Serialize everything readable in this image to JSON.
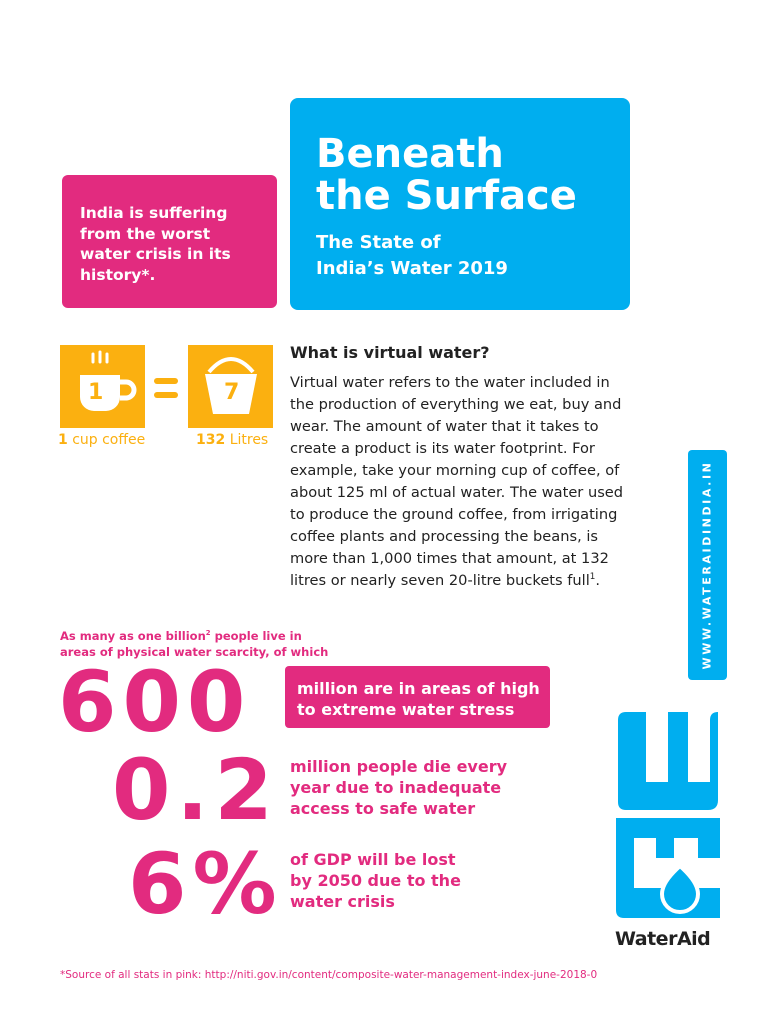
{
  "intro_box": {
    "text": "India is suffering from the worst water crisis in its history*."
  },
  "header": {
    "title_line1": "Beneath",
    "title_line2": "the Surface",
    "subtitle_line1": "The State of",
    "subtitle_line2": "India’s Water 2019"
  },
  "coffee": {
    "cup_digit": "1",
    "bucket_digit": "7",
    "cup_amount": "1",
    "cup_label": "cup coffee",
    "bucket_amount": "132",
    "bucket_label": "Litres"
  },
  "virtual_water": {
    "heading": "What is virtual water?",
    "body": "Virtual water refers to the water included in the production of everything we eat, buy and wear. The amount of water that it takes to create a product is its water footprint. For example, take your morning cup of coffee, of about 125 ml of actual water. The water used to produce the ground coffee, from irrigating coffee plants and processing the beans, is more than 1,000 times that amount, at 132 litres or nearly seven 20-litre buckets full",
    "footnote_mark": "1",
    "body_end": "."
  },
  "website": "WWW.WATERAIDINDIA.IN",
  "stats_intro": {
    "before": "As many as one billion",
    "footnote_mark": "2",
    "after": " people live in areas of physical water scarcity, of which"
  },
  "stats": [
    {
      "value": "600",
      "text": "million are in areas of high to extreme water stress"
    },
    {
      "value": "0.2",
      "text": "million people die every year due to inadequate access to safe water"
    },
    {
      "value": "6%",
      "text": "of GDP will be lost by 2050 due to the water crisis"
    }
  ],
  "logo": "WaterAid",
  "source": "*Source of all stats in pink: http://niti.gov.in/content/composite-water-management-index-june-2018-0"
}
